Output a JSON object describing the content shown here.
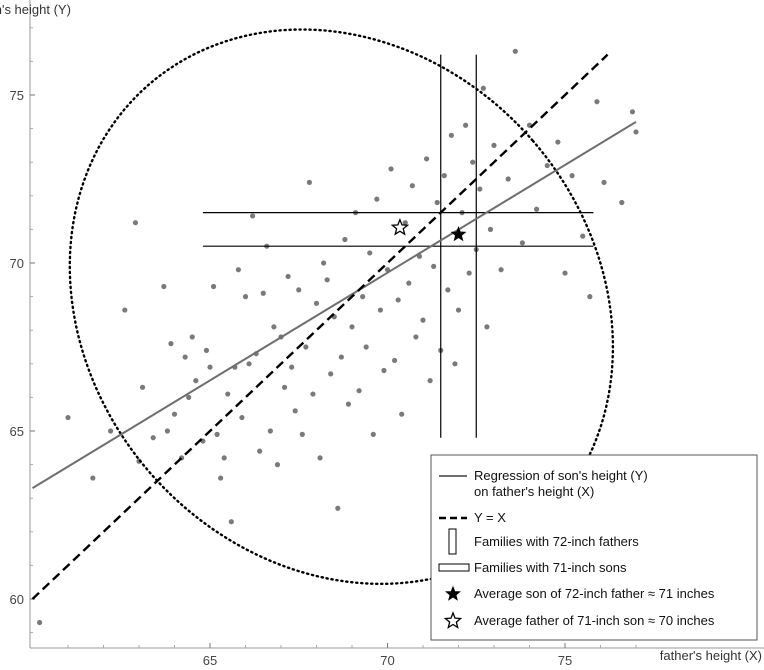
{
  "chart_data": {
    "type": "scatter",
    "title": "",
    "xlabel": "father's height (X)",
    "ylabel": "son's height (Y)",
    "xlim": [
      60,
      77.3
    ],
    "ylim": [
      59,
      77.5
    ],
    "x_ticks": [
      65,
      70,
      75
    ],
    "y_ticks": [
      60,
      65,
      70,
      75
    ],
    "x_tick_labels": [
      "65",
      "70",
      "75"
    ],
    "y_tick_labels": [
      "60",
      "65",
      "70",
      "75"
    ],
    "grid": false,
    "legend_position": "bottom-right",
    "legend": [
      {
        "label_lines": [
          "Regression of son's height (Y)",
          "on father's height (X)"
        ],
        "marker": "gray-solid-line"
      },
      {
        "label_lines": [
          "Y = X"
        ],
        "marker": "black-dashed-line"
      },
      {
        "label_lines": [
          "Families with 72-inch fathers"
        ],
        "marker": "tall-rectangle"
      },
      {
        "label_lines": [
          "Families with 71-inch sons"
        ],
        "marker": "wide-rectangle"
      },
      {
        "label_lines": [
          "Average son of 72-inch father ≈ 71 inches"
        ],
        "marker": "filled-star"
      },
      {
        "label_lines": [
          "Average father of 71-inch son ≈ 70 inches"
        ],
        "marker": "hollow-star"
      }
    ],
    "regression_line": {
      "x": [
        60,
        77
      ],
      "y": [
        63.3,
        74.2
      ]
    },
    "identity_line": {
      "x": [
        60,
        76.2
      ],
      "y": [
        60,
        76.2
      ]
    },
    "ellipse": {
      "cx": 68.7,
      "cy": 68.7,
      "x_range": [
        61.2,
        76.5
      ],
      "y_range": [
        60.1,
        76.6
      ]
    },
    "vertical_strip": {
      "x": [
        71.5,
        72.5
      ],
      "y": [
        64.8,
        76.2
      ]
    },
    "horizontal_strip": {
      "x": [
        64.8,
        75.8
      ],
      "y": [
        70.5,
        71.5
      ]
    },
    "avg_son_point": {
      "x": 72.0,
      "y": 70.85
    },
    "avg_father_point": {
      "x": 70.35,
      "y": 71.05
    },
    "points": [
      [
        60.2,
        59.3
      ],
      [
        61.0,
        65.4
      ],
      [
        61.7,
        63.6
      ],
      [
        62.2,
        65.0
      ],
      [
        62.6,
        68.6
      ],
      [
        62.9,
        71.2
      ],
      [
        63.0,
        64.1
      ],
      [
        63.1,
        66.3
      ],
      [
        63.4,
        64.8
      ],
      [
        63.7,
        69.3
      ],
      [
        63.8,
        65.0
      ],
      [
        63.9,
        67.6
      ],
      [
        64.0,
        65.5
      ],
      [
        64.2,
        64.2
      ],
      [
        64.3,
        67.2
      ],
      [
        64.4,
        66.0
      ],
      [
        64.5,
        67.8
      ],
      [
        64.6,
        66.5
      ],
      [
        64.8,
        64.7
      ],
      [
        64.9,
        67.4
      ],
      [
        65.0,
        66.9
      ],
      [
        65.1,
        69.3
      ],
      [
        65.2,
        64.9
      ],
      [
        65.3,
        63.6
      ],
      [
        65.4,
        64.2
      ],
      [
        65.5,
        66.1
      ],
      [
        65.6,
        62.3
      ],
      [
        65.7,
        66.9
      ],
      [
        65.8,
        69.8
      ],
      [
        65.9,
        65.4
      ],
      [
        66.0,
        69.0
      ],
      [
        66.1,
        67.0
      ],
      [
        66.2,
        71.4
      ],
      [
        66.3,
        67.3
      ],
      [
        66.4,
        64.4
      ],
      [
        66.5,
        69.1
      ],
      [
        66.6,
        70.5
      ],
      [
        66.7,
        65.0
      ],
      [
        66.8,
        68.1
      ],
      [
        66.9,
        64.0
      ],
      [
        67.0,
        67.8
      ],
      [
        67.1,
        66.3
      ],
      [
        67.2,
        69.6
      ],
      [
        67.3,
        66.9
      ],
      [
        67.4,
        65.6
      ],
      [
        67.5,
        69.2
      ],
      [
        67.6,
        64.9
      ],
      [
        67.7,
        67.5
      ],
      [
        67.8,
        72.4
      ],
      [
        67.9,
        66.1
      ],
      [
        68.0,
        68.8
      ],
      [
        68.1,
        64.2
      ],
      [
        68.2,
        70.0
      ],
      [
        68.3,
        69.5
      ],
      [
        68.4,
        66.7
      ],
      [
        68.5,
        68.4
      ],
      [
        68.6,
        62.7
      ],
      [
        68.7,
        67.2
      ],
      [
        68.8,
        70.7
      ],
      [
        68.9,
        65.8
      ],
      [
        69.0,
        68.1
      ],
      [
        69.1,
        71.5
      ],
      [
        69.2,
        66.2
      ],
      [
        69.3,
        69.0
      ],
      [
        69.4,
        67.5
      ],
      [
        69.5,
        70.3
      ],
      [
        69.6,
        64.9
      ],
      [
        69.7,
        71.9
      ],
      [
        69.8,
        68.6
      ],
      [
        69.9,
        66.8
      ],
      [
        70.0,
        69.8
      ],
      [
        70.1,
        72.8
      ],
      [
        70.2,
        67.1
      ],
      [
        70.3,
        68.9
      ],
      [
        70.4,
        65.5
      ],
      [
        70.5,
        71.2
      ],
      [
        70.6,
        69.4
      ],
      [
        70.7,
        72.3
      ],
      [
        70.8,
        67.8
      ],
      [
        70.9,
        70.2
      ],
      [
        71.0,
        68.3
      ],
      [
        71.1,
        73.1
      ],
      [
        71.2,
        66.5
      ],
      [
        71.3,
        69.9
      ],
      [
        71.4,
        71.8
      ],
      [
        71.5,
        67.4
      ],
      [
        71.6,
        72.6
      ],
      [
        71.7,
        69.2
      ],
      [
        71.8,
        73.8
      ],
      [
        71.9,
        67.0
      ],
      [
        72.0,
        68.6
      ],
      [
        72.1,
        71.5
      ],
      [
        72.2,
        74.1
      ],
      [
        72.3,
        69.7
      ],
      [
        72.4,
        73.0
      ],
      [
        72.5,
        70.4
      ],
      [
        72.6,
        72.2
      ],
      [
        72.7,
        75.2
      ],
      [
        72.8,
        68.1
      ],
      [
        72.9,
        71.0
      ],
      [
        73.0,
        73.5
      ],
      [
        73.2,
        69.8
      ],
      [
        73.4,
        72.5
      ],
      [
        73.6,
        76.3
      ],
      [
        73.8,
        70.6
      ],
      [
        74.0,
        74.1
      ],
      [
        74.2,
        71.6
      ],
      [
        74.5,
        72.9
      ],
      [
        74.8,
        73.6
      ],
      [
        75.0,
        69.7
      ],
      [
        75.2,
        72.6
      ],
      [
        75.5,
        70.8
      ],
      [
        75.7,
        69.0
      ],
      [
        75.9,
        74.8
      ],
      [
        76.1,
        72.4
      ],
      [
        76.6,
        71.8
      ],
      [
        76.9,
        74.5
      ],
      [
        77.0,
        73.9
      ]
    ]
  }
}
